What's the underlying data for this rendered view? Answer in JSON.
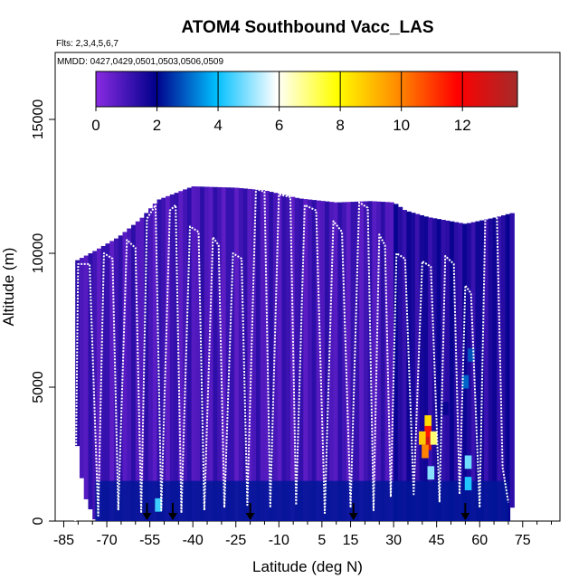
{
  "chart_data": {
    "type": "heatmap",
    "title": "ATOM4 Southbound Vacc_LAS",
    "flights_note": "Flts: 2,3,4,5,6,7",
    "dates_note": "MMDD: 0427,0429,0501,0503,0506,0509",
    "xlabel": "Latitude (deg N)",
    "ylabel": "Altitude (m)",
    "xlim": [
      -88,
      88
    ],
    "ylim": [
      0,
      17500
    ],
    "x_ticks": [
      -85,
      -70,
      -55,
      -40,
      -25,
      -10,
      5,
      15,
      30,
      45,
      60,
      75
    ],
    "x_tick_labels": [
      "-85",
      "-70",
      "-55",
      "-40",
      "-25",
      "-10",
      "5",
      "15",
      "30",
      "45",
      "60",
      "75"
    ],
    "y_ticks": [
      0,
      5000,
      10000,
      15000
    ],
    "y_tick_labels": [
      "0",
      "5000",
      "10000",
      "15000"
    ],
    "colorbar": {
      "range": [
        0,
        13.8
      ],
      "ticks": [
        0,
        2,
        4,
        6,
        8,
        10,
        12
      ],
      "tick_labels": [
        "0",
        "2",
        "4",
        "6",
        "8",
        "10",
        "12"
      ],
      "colors": [
        "#8a2be2",
        "#00008b",
        "#00bfff",
        "#ffffff",
        "#ffff00",
        "#ff8c00",
        "#ff0000",
        "#a52a2a"
      ]
    },
    "domain_top_altitude": [
      [
        -81,
        9700
      ],
      [
        -74,
        10100
      ],
      [
        -66,
        10600
      ],
      [
        -58,
        11300
      ],
      [
        -52,
        12000
      ],
      [
        -40,
        12500
      ],
      [
        -25,
        12450
      ],
      [
        -15,
        12350
      ],
      [
        -3,
        12050
      ],
      [
        10,
        11900
      ],
      [
        22,
        11950
      ],
      [
        30,
        11900
      ],
      [
        34,
        11600
      ],
      [
        42,
        11350
      ],
      [
        55,
        11100
      ],
      [
        66,
        11350
      ],
      [
        71,
        11500
      ]
    ],
    "domain_bottom_altitude": [
      [
        -81,
        3400
      ],
      [
        -78,
        1000
      ],
      [
        -74,
        0
      ],
      [
        70,
        0
      ],
      [
        71,
        500
      ]
    ],
    "flight_profiles": [
      [
        -81,
        0
      ],
      [
        -80,
        9600
      ],
      [
        -76,
        9600
      ],
      [
        -73,
        200
      ],
      [
        -71,
        10000
      ],
      [
        -68,
        9800
      ],
      [
        -66,
        400
      ],
      [
        -63,
        10500
      ],
      [
        -60,
        10200
      ],
      [
        -58,
        300
      ],
      [
        -56,
        11300
      ],
      [
        -53,
        11800
      ],
      [
        -51,
        400
      ],
      [
        -48,
        11600
      ],
      [
        -46,
        11800
      ],
      [
        -44,
        300
      ],
      [
        -41,
        11000
      ],
      [
        -38,
        10800
      ],
      [
        -36,
        400
      ],
      [
        -33,
        10600
      ],
      [
        -31,
        10300
      ],
      [
        -29,
        500
      ],
      [
        -26,
        10000
      ],
      [
        -23,
        9800
      ],
      [
        -21,
        600
      ],
      [
        -18,
        12400
      ],
      [
        -15,
        12300
      ],
      [
        -13,
        500
      ],
      [
        -10,
        12200
      ],
      [
        -6,
        12100
      ],
      [
        -4,
        600
      ],
      [
        -1,
        11800
      ],
      [
        3,
        11600
      ],
      [
        6,
        300
      ],
      [
        9,
        11200
      ],
      [
        12,
        10800
      ],
      [
        15,
        500
      ],
      [
        18,
        11900
      ],
      [
        21,
        11700
      ],
      [
        23,
        400
      ],
      [
        25,
        10700
      ],
      [
        27,
        10300
      ],
      [
        29,
        900
      ],
      [
        31,
        10000
      ],
      [
        34,
        9800
      ],
      [
        37,
        1000
      ],
      [
        40,
        9700
      ],
      [
        43,
        9500
      ],
      [
        46,
        700
      ],
      [
        48,
        9900
      ],
      [
        51,
        9600
      ],
      [
        53,
        1000
      ],
      [
        55,
        8800
      ],
      [
        57,
        8500
      ],
      [
        60,
        500
      ],
      [
        62,
        11500
      ],
      [
        66,
        11400
      ],
      [
        68,
        2000
      ],
      [
        70,
        700
      ]
    ],
    "high_value_cells": [
      {
        "lat": 42,
        "alt": 3700,
        "value": 8.5
      },
      {
        "lat": 42,
        "alt": 3300,
        "value": 11.5
      },
      {
        "lat": 42,
        "alt": 2900,
        "value": 12.8
      },
      {
        "lat": 40,
        "alt": 3100,
        "value": 8.8
      },
      {
        "lat": 44,
        "alt": 3100,
        "value": 7.0
      },
      {
        "lat": 41,
        "alt": 2600,
        "value": 10.0
      },
      {
        "lat": 43,
        "alt": 1800,
        "value": 5.0
      },
      {
        "lat": 56,
        "alt": 2200,
        "value": 4.8
      },
      {
        "lat": 56,
        "alt": 1400,
        "value": 4.2
      },
      {
        "lat": -52,
        "alt": 600,
        "value": 4.4
      },
      {
        "lat": 57,
        "alt": 6200,
        "value": 2.8
      },
      {
        "lat": 55,
        "alt": 5200,
        "value": 3.0
      },
      {
        "lat": 48,
        "alt": 4200,
        "value": 1.8
      }
    ],
    "low_altitude_band": {
      "top_alt": 1500,
      "value": 2.2
    },
    "profile_arrows_lat": [
      -56,
      -47,
      -20,
      16,
      55
    ]
  }
}
